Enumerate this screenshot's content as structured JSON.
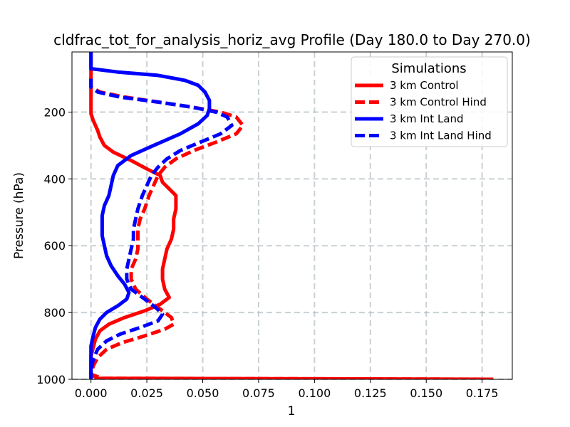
{
  "chart_data": {
    "type": "line",
    "title": "cldfrac_tot_for_analysis_horiz_avg Profile (Day 180.0 to Day 270.0)",
    "xlabel": "1",
    "ylabel": "Pressure (hPa)",
    "xlim": [
      -0.0085,
      0.1885
    ],
    "ylim": [
      1000,
      20
    ],
    "y_inverted": true,
    "xticks": [
      0.0,
      0.025,
      0.05,
      0.075,
      0.1,
      0.125,
      0.15,
      0.175
    ],
    "xtick_labels": [
      "0.000",
      "0.025",
      "0.050",
      "0.075",
      "0.100",
      "0.125",
      "0.150",
      "0.175"
    ],
    "yticks": [
      200,
      400,
      600,
      800,
      1000
    ],
    "ytick_labels": [
      "200",
      "400",
      "600",
      "800",
      "1000"
    ],
    "grid": true,
    "legend": {
      "title": "Simulations",
      "placement": "top-right"
    },
    "series": [
      {
        "name": "3 km Control",
        "color": "#ff0000",
        "dash": "solid",
        "points": [
          [
            0.0,
            20
          ],
          [
            0.0,
            60
          ],
          [
            0.0,
            120
          ],
          [
            0.0,
            180
          ],
          [
            0.0,
            205
          ],
          [
            0.001,
            225
          ],
          [
            0.003,
            255
          ],
          [
            0.004,
            275
          ],
          [
            0.006,
            300
          ],
          [
            0.01,
            320
          ],
          [
            0.018,
            345
          ],
          [
            0.025,
            370
          ],
          [
            0.031,
            390
          ],
          [
            0.032,
            410
          ],
          [
            0.035,
            430
          ],
          [
            0.038,
            450
          ],
          [
            0.038,
            470
          ],
          [
            0.038,
            490
          ],
          [
            0.037,
            520
          ],
          [
            0.037,
            550
          ],
          [
            0.036,
            580
          ],
          [
            0.034,
            610
          ],
          [
            0.033,
            640
          ],
          [
            0.032,
            670
          ],
          [
            0.032,
            700
          ],
          [
            0.033,
            730
          ],
          [
            0.035,
            755
          ],
          [
            0.031,
            775
          ],
          [
            0.024,
            795
          ],
          [
            0.015,
            815
          ],
          [
            0.008,
            835
          ],
          [
            0.004,
            855
          ],
          [
            0.002,
            880
          ],
          [
            0.001,
            905
          ],
          [
            0.0,
            930
          ],
          [
            0.0,
            960
          ],
          [
            0.0,
            985
          ],
          [
            0.003,
            997
          ],
          [
            0.18,
            1000
          ]
        ]
      },
      {
        "name": "3 km Control Hind",
        "color": "#ff0000",
        "dash": "dashed",
        "points": [
          [
            0.0,
            100
          ],
          [
            0.0,
            125
          ],
          [
            0.004,
            140
          ],
          [
            0.015,
            155
          ],
          [
            0.03,
            170
          ],
          [
            0.045,
            185
          ],
          [
            0.058,
            200
          ],
          [
            0.065,
            215
          ],
          [
            0.068,
            240
          ],
          [
            0.065,
            265
          ],
          [
            0.056,
            290
          ],
          [
            0.046,
            315
          ],
          [
            0.038,
            340
          ],
          [
            0.033,
            365
          ],
          [
            0.03,
            390
          ],
          [
            0.028,
            420
          ],
          [
            0.026,
            450
          ],
          [
            0.024,
            490
          ],
          [
            0.022,
            520
          ],
          [
            0.021,
            550
          ],
          [
            0.021,
            580
          ],
          [
            0.021,
            610
          ],
          [
            0.02,
            640
          ],
          [
            0.018,
            670
          ],
          [
            0.018,
            700
          ],
          [
            0.02,
            730
          ],
          [
            0.025,
            760
          ],
          [
            0.031,
            790
          ],
          [
            0.036,
            815
          ],
          [
            0.037,
            835
          ],
          [
            0.033,
            850
          ],
          [
            0.024,
            870
          ],
          [
            0.014,
            890
          ],
          [
            0.007,
            910
          ],
          [
            0.003,
            935
          ],
          [
            0.001,
            960
          ],
          [
            0.0,
            985
          ],
          [
            0.005,
            997
          ],
          [
            0.18,
            1000
          ]
        ]
      },
      {
        "name": "3 km Int Land",
        "color": "#0000ff",
        "dash": "solid",
        "points": [
          [
            0.0,
            20
          ],
          [
            0.0,
            55
          ],
          [
            0.0,
            70
          ],
          [
            0.012,
            80
          ],
          [
            0.03,
            90
          ],
          [
            0.042,
            105
          ],
          [
            0.048,
            120
          ],
          [
            0.051,
            140
          ],
          [
            0.053,
            165
          ],
          [
            0.053,
            190
          ],
          [
            0.052,
            210
          ],
          [
            0.048,
            235
          ],
          [
            0.04,
            265
          ],
          [
            0.028,
            300
          ],
          [
            0.018,
            330
          ],
          [
            0.012,
            360
          ],
          [
            0.01,
            390
          ],
          [
            0.009,
            420
          ],
          [
            0.008,
            450
          ],
          [
            0.006,
            480
          ],
          [
            0.005,
            510
          ],
          [
            0.005,
            540
          ],
          [
            0.005,
            570
          ],
          [
            0.006,
            600
          ],
          [
            0.007,
            630
          ],
          [
            0.009,
            660
          ],
          [
            0.012,
            690
          ],
          [
            0.015,
            715
          ],
          [
            0.017,
            740
          ],
          [
            0.016,
            760
          ],
          [
            0.012,
            780
          ],
          [
            0.007,
            800
          ],
          [
            0.004,
            820
          ],
          [
            0.002,
            845
          ],
          [
            0.001,
            870
          ],
          [
            0.0,
            900
          ],
          [
            0.0,
            940
          ],
          [
            0.0,
            975
          ],
          [
            0.0,
            1000
          ]
        ]
      },
      {
        "name": "3 km Int Land Hind",
        "color": "#0000ff",
        "dash": "dashed",
        "points": [
          [
            0.0,
            100
          ],
          [
            0.0,
            125
          ],
          [
            0.003,
            140
          ],
          [
            0.013,
            155
          ],
          [
            0.03,
            170
          ],
          [
            0.045,
            185
          ],
          [
            0.056,
            200
          ],
          [
            0.061,
            215
          ],
          [
            0.063,
            240
          ],
          [
            0.058,
            265
          ],
          [
            0.049,
            290
          ],
          [
            0.04,
            315
          ],
          [
            0.034,
            340
          ],
          [
            0.03,
            365
          ],
          [
            0.027,
            390
          ],
          [
            0.025,
            420
          ],
          [
            0.023,
            450
          ],
          [
            0.021,
            490
          ],
          [
            0.02,
            520
          ],
          [
            0.019,
            550
          ],
          [
            0.019,
            580
          ],
          [
            0.018,
            610
          ],
          [
            0.017,
            640
          ],
          [
            0.016,
            670
          ],
          [
            0.016,
            700
          ],
          [
            0.018,
            730
          ],
          [
            0.024,
            760
          ],
          [
            0.029,
            785
          ],
          [
            0.032,
            805
          ],
          [
            0.03,
            825
          ],
          [
            0.022,
            845
          ],
          [
            0.013,
            865
          ],
          [
            0.007,
            885
          ],
          [
            0.003,
            910
          ],
          [
            0.001,
            940
          ],
          [
            0.0,
            975
          ],
          [
            0.0,
            1000
          ]
        ]
      }
    ]
  }
}
